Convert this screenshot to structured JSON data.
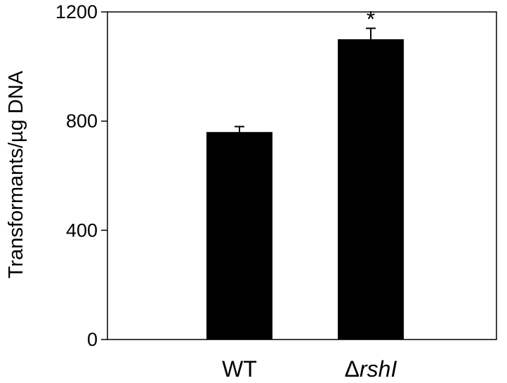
{
  "chart_data": {
    "type": "bar",
    "title": "",
    "xlabel": "",
    "ylabel": "Transformants/µg DNA",
    "ylim": [
      0,
      1200
    ],
    "yticks": [
      0,
      400,
      800,
      1200
    ],
    "categories": [
      {
        "prefix": "",
        "italic": "",
        "full": "WT"
      },
      {
        "prefix": "Δ",
        "italic": "rshI",
        "full": "ΔrshI"
      }
    ],
    "values": [
      760,
      1100
    ],
    "errors": [
      20,
      40
    ],
    "annotations": [
      "",
      "*"
    ],
    "bar_color": "#000000",
    "axis_color": "#000000",
    "grid": false
  }
}
